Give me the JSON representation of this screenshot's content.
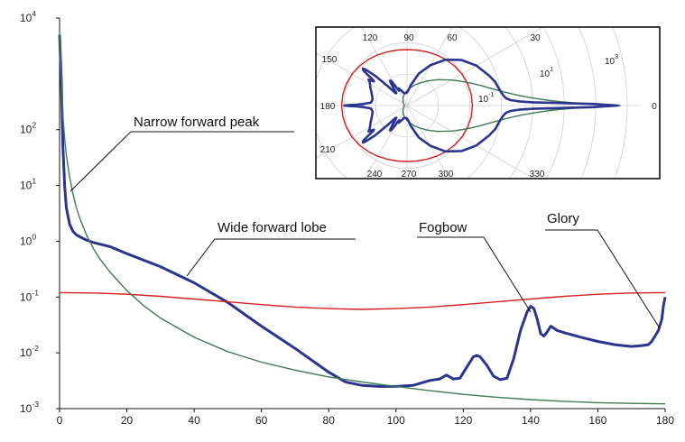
{
  "chart_data": {
    "type": "line",
    "x_ticks": [
      0,
      20,
      40,
      60,
      80,
      100,
      120,
      140,
      160,
      180
    ],
    "xlim": [
      0,
      180
    ],
    "ylim_log10": [
      -3,
      4
    ],
    "y_scale": "log",
    "y_ticks": [
      {
        "base": "10",
        "exp": "-3"
      },
      {
        "base": "10",
        "exp": "-2"
      },
      {
        "base": "10",
        "exp": "-1"
      },
      {
        "base": "10",
        "exp": "0"
      },
      {
        "base": "10",
        "exp": "1"
      },
      {
        "base": "10",
        "exp": "2"
      },
      {
        "base": "10",
        "exp": "4"
      }
    ],
    "grid": false,
    "series": [
      {
        "color": "#2b3590",
        "x": [
          0,
          0.5,
          1,
          1.5,
          2,
          3,
          4,
          5,
          6,
          8,
          10,
          15,
          20,
          30,
          40,
          50,
          60,
          70,
          80,
          85,
          90,
          95,
          100,
          105,
          110,
          113,
          115,
          117,
          119,
          121,
          123,
          124,
          125,
          127,
          129,
          131,
          133,
          135,
          137,
          139,
          140,
          141,
          142,
          143,
          144,
          145,
          146,
          148,
          150,
          155,
          160,
          165,
          170,
          173,
          175,
          176,
          177,
          178,
          179,
          179.5,
          180
        ],
        "y": [
          5000,
          800,
          50,
          10,
          4,
          2,
          1.5,
          1.3,
          1.2,
          1.05,
          0.95,
          0.8,
          0.6,
          0.35,
          0.18,
          0.08,
          0.03,
          0.012,
          0.0045,
          0.003,
          0.0026,
          0.0025,
          0.0025,
          0.0026,
          0.0032,
          0.0034,
          0.004,
          0.0034,
          0.0035,
          0.0055,
          0.0085,
          0.009,
          0.0085,
          0.006,
          0.0038,
          0.0033,
          0.0035,
          0.008,
          0.025,
          0.055,
          0.068,
          0.062,
          0.04,
          0.022,
          0.02,
          0.024,
          0.03,
          0.025,
          0.023,
          0.019,
          0.016,
          0.014,
          0.013,
          0.0135,
          0.014,
          0.016,
          0.02,
          0.025,
          0.04,
          0.07,
          0.1
        ]
      },
      {
        "color": "#d42020",
        "x": [
          0,
          10,
          20,
          30,
          40,
          50,
          60,
          70,
          80,
          90,
          100,
          110,
          120,
          130,
          140,
          150,
          160,
          170,
          180
        ],
        "y": [
          0.12,
          0.118,
          0.112,
          0.103,
          0.092,
          0.082,
          0.073,
          0.066,
          0.062,
          0.06,
          0.062,
          0.066,
          0.073,
          0.082,
          0.092,
          0.103,
          0.112,
          0.118,
          0.12
        ]
      },
      {
        "color": "#3d7a55",
        "x": [
          0,
          0.5,
          1,
          1.5,
          2,
          3,
          4,
          5,
          6,
          8,
          10,
          12,
          15,
          20,
          25,
          30,
          40,
          50,
          60,
          70,
          80,
          90,
          100,
          110,
          120,
          130,
          140,
          150,
          160,
          170,
          180
        ],
        "y": [
          6000,
          900,
          180,
          70,
          35,
          14,
          7,
          4,
          2.6,
          1.3,
          0.75,
          0.48,
          0.28,
          0.13,
          0.07,
          0.042,
          0.019,
          0.0105,
          0.0068,
          0.0049,
          0.0037,
          0.003,
          0.0025,
          0.0021,
          0.0018,
          0.0016,
          0.00145,
          0.00135,
          0.00128,
          0.00124,
          0.00122
        ]
      }
    ],
    "annotations": [
      {
        "text": "Narrow forward peak",
        "x": 2,
        "y": 5
      },
      {
        "text": "Wide forward lobe",
        "x": 38,
        "y": 0.2
      },
      {
        "text": "Fogbow",
        "x": 140,
        "y": 0.06
      },
      {
        "text": "Glory",
        "x": 179.5,
        "y": 0.02
      }
    ],
    "inset": {
      "type": "polar",
      "angle_ticks": [
        "0",
        "30",
        "60",
        "90",
        "120",
        "150",
        "180",
        "210",
        "240",
        "270",
        "300",
        "330"
      ],
      "radial_ticks": [
        {
          "base": "10",
          "exp": "-1"
        },
        {
          "base": "10",
          "exp": "1"
        },
        {
          "base": "10",
          "exp": "3"
        }
      ],
      "rlim_log10": [
        -3,
        4
      ]
    }
  }
}
